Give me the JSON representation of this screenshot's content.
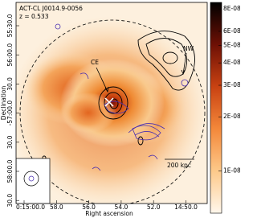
{
  "chart_data": {
    "type": "image",
    "name": "ACT-CL J0014.9-0056",
    "redshift": "z = 0.533",
    "annotations": [
      "CE",
      "NW"
    ],
    "scalebar": "200 kpc",
    "xlabel": "Right ascension",
    "ylabel": "Declination",
    "x_tick_labels": [
      "0:15:00.0",
      "58.0",
      "56.0",
      "54.0",
      "52.0",
      "14:50.0"
    ],
    "y_tick_labels": [
      "55:30.0",
      "56:00.0",
      "30.0",
      "-57:00.0",
      "30.0",
      "58:00.0",
      "30.0"
    ],
    "colorbar_scale": "log",
    "colorbar_lim": [
      5.8e-09,
      8.7e-08
    ],
    "colorbar_ticks": [
      {
        "value": 1e-08,
        "label": "1E-08"
      },
      {
        "value": 2e-08,
        "label": "2E-08"
      },
      {
        "value": 3e-08,
        "label": "3E-08"
      },
      {
        "value": 4e-08,
        "label": "4E-08"
      },
      {
        "value": 5e-08,
        "label": "5E-08"
      },
      {
        "value": 6e-08,
        "label": "6E-08"
      },
      {
        "value": 8e-08,
        "label": "8E-08"
      }
    ]
  }
}
